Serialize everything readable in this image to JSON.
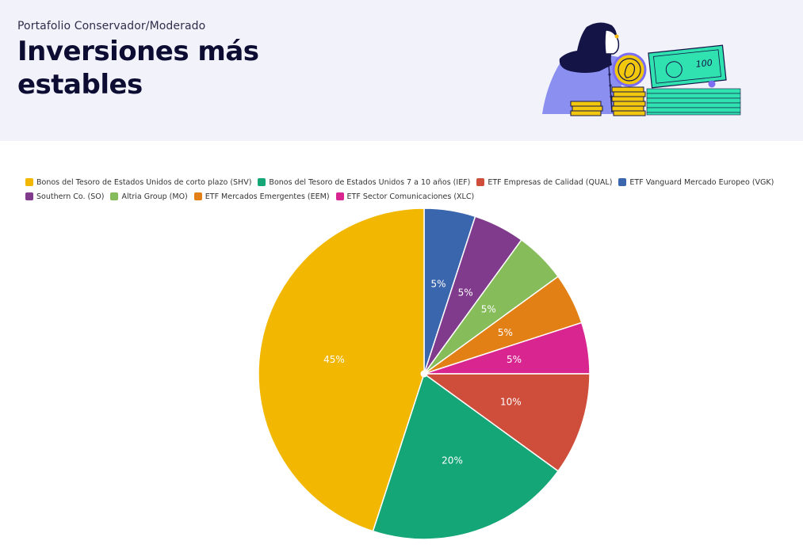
{
  "header": {
    "subtitle": "Portafolio Conservador/Moderado",
    "title": "Inversiones más estables"
  },
  "illustration": {
    "name": "woman-with-coins-and-banknotes",
    "banknote_text": "100"
  },
  "chart_data": {
    "type": "pie",
    "title": "",
    "legend_position": "top",
    "slices": [
      {
        "label": "ETF Vanguard Mercado Europeo (VGK)",
        "value": 5,
        "display": "5%",
        "color": "#3a66ad"
      },
      {
        "label": "Southern Co. (SO)",
        "value": 5,
        "display": "5%",
        "color": "#803b8c"
      },
      {
        "label": "Altria Group (MO)",
        "value": 5,
        "display": "5%",
        "color": "#86bc5a"
      },
      {
        "label": "ETF Mercados Emergentes (EEM)",
        "value": 5,
        "display": "5%",
        "color": "#e38015"
      },
      {
        "label": "ETF Sector Comunicaciones (XLC)",
        "value": 5,
        "display": "5%",
        "color": "#d92590"
      },
      {
        "label": "ETF Empresas de Calidad (QUAL)",
        "value": 10,
        "display": "10%",
        "color": "#cf4e3b"
      },
      {
        "label": "Bonos del Tesoro de Estados Unidos 7 a 10 años (IEF)",
        "value": 20,
        "display": "20%",
        "color": "#15a677"
      },
      {
        "label": "Bonos del Tesoro de Estados Unidos de corto plazo (SHV)",
        "value": 45,
        "display": "45%",
        "color": "#f1b701"
      }
    ],
    "legend_order": [
      "Bonos del Tesoro de Estados Unidos de corto plazo (SHV)",
      "Bonos del Tesoro de Estados Unidos 7 a 10 años (IEF)",
      "ETF Empresas de Calidad (QUAL)",
      "ETF Vanguard Mercado Europeo (VGK)",
      "Southern Co. (SO)",
      "Altria Group (MO)",
      "ETF Mercados Emergentes (EEM)",
      "ETF Sector Comunicaciones (XLC)"
    ]
  }
}
